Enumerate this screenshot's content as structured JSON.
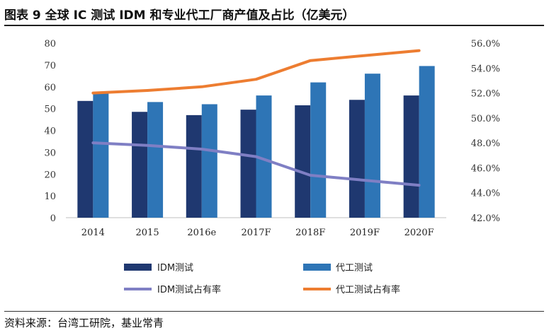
{
  "header": {
    "title": "图表 9 全球 IC 测试 IDM 和专业代工厂商产值及占比（亿美元）"
  },
  "footer": {
    "source": "资料来源：台湾工研院，基业常青"
  },
  "chart_data": {
    "type": "bar",
    "categories": [
      "2014",
      "2015",
      "2016e",
      "2017F",
      "2018F",
      "2019F",
      "2020F"
    ],
    "series": [
      {
        "name": "IDM测试",
        "type": "bar",
        "axis": "left",
        "color": "#1f3870",
        "values": [
          53.5,
          48.5,
          47,
          49.5,
          51.5,
          54,
          56
        ]
      },
      {
        "name": "代工测试",
        "type": "bar",
        "axis": "left",
        "color": "#2e75b6",
        "values": [
          57,
          53,
          52,
          56,
          62,
          66,
          69.5
        ]
      },
      {
        "name": "IDM测试占有率",
        "type": "line",
        "axis": "right",
        "color": "#7f7fc4",
        "values": [
          48.0,
          47.8,
          47.5,
          46.9,
          45.4,
          45.0,
          44.6
        ]
      },
      {
        "name": "代工测试占有率",
        "type": "line",
        "axis": "right",
        "color": "#ed7d31",
        "values": [
          52.0,
          52.2,
          52.5,
          53.1,
          54.6,
          55.0,
          55.4
        ]
      }
    ],
    "y_left": {
      "min": 0,
      "max": 80,
      "step": 10,
      "ticks": [
        "0",
        "10",
        "20",
        "30",
        "40",
        "50",
        "60",
        "70",
        "80"
      ]
    },
    "y_right": {
      "min": 42,
      "max": 56,
      "step": 2,
      "ticks": [
        "42.0%",
        "44.0%",
        "46.0%",
        "48.0%",
        "50.0%",
        "52.0%",
        "54.0%",
        "56.0%"
      ]
    },
    "grid": false,
    "legend_position": "bottom"
  }
}
